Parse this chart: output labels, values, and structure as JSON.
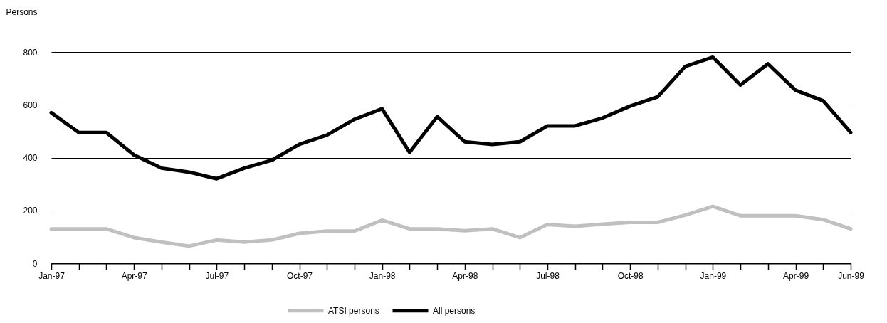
{
  "chart_data": {
    "type": "line",
    "ylabel": "Persons",
    "categories": [
      "Jan-97",
      null,
      null,
      "Apr-97",
      null,
      null,
      "Jul-97",
      null,
      null,
      "Oct-97",
      null,
      null,
      "Jan-98",
      null,
      null,
      "Apr-98",
      null,
      null,
      "Jul-98",
      null,
      null,
      "Oct-98",
      null,
      null,
      "Jan-99",
      null,
      null,
      "Apr-99",
      null,
      "Jun-99"
    ],
    "series": [
      {
        "name": "ATSI persons",
        "color": "#c0c0c0",
        "values": [
          130,
          130,
          130,
          97,
          80,
          65,
          88,
          80,
          88,
          113,
          122,
          122,
          163,
          130,
          130,
          123,
          130,
          97,
          147,
          140,
          148,
          155,
          155,
          182,
          215,
          180,
          180,
          180,
          165,
          130
        ]
      },
      {
        "name": "All persons",
        "color": "#000000",
        "values": [
          570,
          495,
          495,
          410,
          360,
          345,
          320,
          360,
          390,
          450,
          485,
          545,
          585,
          420,
          555,
          460,
          450,
          460,
          520,
          520,
          550,
          595,
          630,
          745,
          780,
          675,
          755,
          655,
          615,
          495
        ]
      }
    ],
    "ylim": [
      0,
      800
    ],
    "yticks": [
      0,
      200,
      400,
      600,
      800
    ],
    "grid": "y",
    "legend": "bottom",
    "line_style": "solid"
  }
}
